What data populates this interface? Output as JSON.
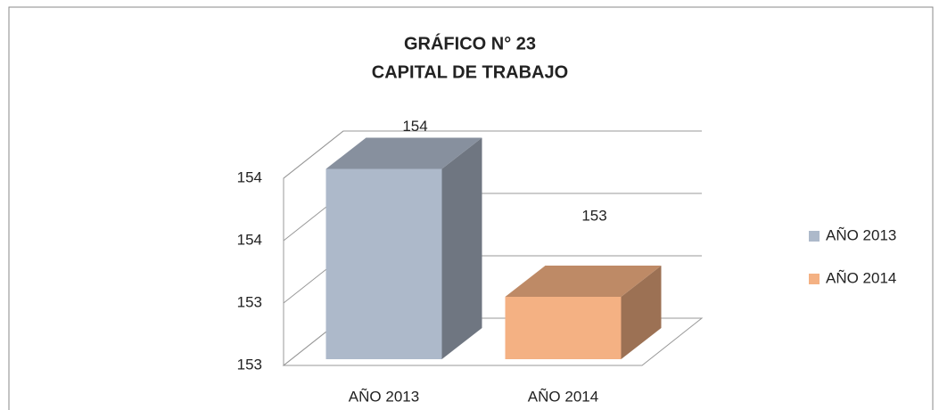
{
  "chart_data": {
    "type": "bar3d",
    "title": [
      "GRÁFICO N° 23",
      "CAPITAL DE TRABAJO"
    ],
    "categories": [
      "AÑO 2013",
      "AÑO 2014"
    ],
    "values": [
      153.83,
      153.42
    ],
    "value_labels": [
      "154",
      "153"
    ],
    "colors": [
      "#adb9ca",
      "#f4b183"
    ],
    "ylim": [
      153.2,
      153.8
    ],
    "yticks": [
      {
        "value": 153.2,
        "label": "153"
      },
      {
        "value": 153.4,
        "label": "153"
      },
      {
        "value": 153.6,
        "label": "154"
      },
      {
        "value": 153.8,
        "label": "154"
      }
    ],
    "grid": true,
    "legend": "right"
  }
}
